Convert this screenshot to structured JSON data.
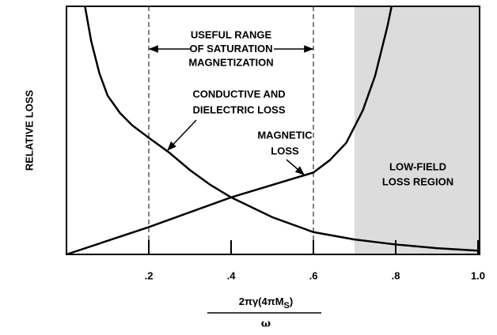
{
  "chart_data": {
    "type": "line",
    "y_label": "RELATIVE LOSS",
    "x_label_numerator": [
      "2πγ(4πM",
      "S",
      ")"
    ],
    "x_label_denominator": "ω",
    "xlim": [
      0,
      1
    ],
    "ylim": [
      0,
      1
    ],
    "xticks": [
      {
        "value": 0.2,
        "label": ".2"
      },
      {
        "value": 0.4,
        "label": ".4"
      },
      {
        "value": 0.6,
        "label": ".6"
      },
      {
        "value": 0.8,
        "label": ".8"
      },
      {
        "value": 1.0,
        "label": "1.0"
      }
    ],
    "shaded_region": {
      "x": [
        0.7,
        1.0
      ],
      "color": "#dcdcdc",
      "label": [
        "LOW-FIELD",
        "LOSS REGION"
      ]
    },
    "useful_range": {
      "x": [
        0.2,
        0.6
      ],
      "label": [
        "USEFUL RANGE",
        "OF SATURATION",
        "MAGNETIZATION"
      ]
    },
    "series": [
      {
        "name": [
          "CONDUCTIVE AND",
          "DIELECTRIC LOSS"
        ],
        "color": "#000000",
        "x": [
          0.045,
          0.06,
          0.08,
          0.1,
          0.13,
          0.16,
          0.2,
          0.25,
          0.3,
          0.35,
          0.4,
          0.5,
          0.6,
          0.7,
          0.8,
          0.9,
          1.0
        ],
        "values": [
          1.0,
          0.86,
          0.73,
          0.64,
          0.57,
          0.52,
          0.47,
          0.41,
          0.34,
          0.28,
          0.23,
          0.15,
          0.09,
          0.06,
          0.04,
          0.025,
          0.015
        ]
      },
      {
        "name": [
          "MAGNETIC",
          "LOSS"
        ],
        "color": "#000000",
        "x": [
          0,
          0.2,
          0.4,
          0.6,
          0.64,
          0.68,
          0.72,
          0.75,
          0.78,
          0.79
        ],
        "values": [
          0,
          0.11,
          0.23,
          0.33,
          0.38,
          0.45,
          0.58,
          0.72,
          0.92,
          1.0
        ]
      }
    ]
  }
}
